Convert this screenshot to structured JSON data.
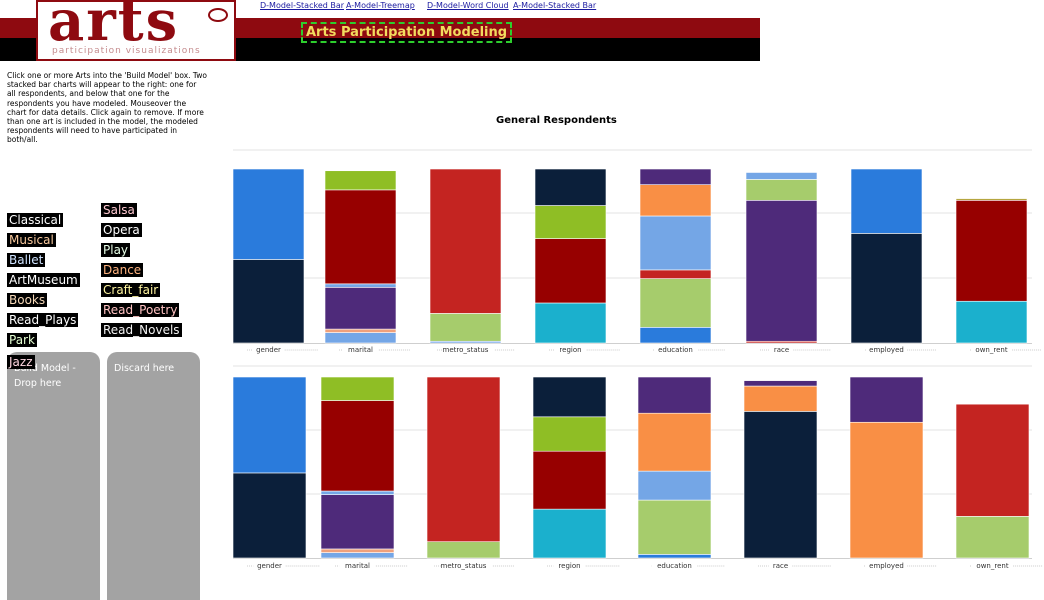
{
  "header": {
    "logo_text": "arts",
    "logo_subtitle": "participation visualizations",
    "nav_links": [
      "D-Model-Stacked Bar",
      "A-Model-Treemap",
      "D-Model-Word Cloud",
      "A-Model-Stacked Bar"
    ],
    "title": "Arts Participation Modeling"
  },
  "instructions": "Click one or more Arts into the 'Build Model' box. Two stacked bar charts will appear to the right: one for all respondents, and below that one for the respondents you have modeled. Mouseover the chart for data details. Click again to remove. If more than one art is included in the model, the modeled respondents will need to have participated in both/all.",
  "arts": {
    "col1": [
      {
        "label": "Classical",
        "color": "#ffffff"
      },
      {
        "label": "Musical",
        "color": "#f6c79c"
      },
      {
        "label": "Ballet",
        "color": "#cfe3ff"
      },
      {
        "label": "ArtMuseum",
        "color": "#ffffff"
      },
      {
        "label": "Books",
        "color": "#f6d9b8"
      },
      {
        "label": "Read_Plays",
        "color": "#ffffff"
      },
      {
        "label": "Park",
        "color": "#e5ffd2"
      },
      {
        "label": "Jazz",
        "color": "#ffd6e0"
      }
    ],
    "col2": [
      {
        "label": "Salsa",
        "color": "#ffc9d1"
      },
      {
        "label": "Opera",
        "color": "#ffffff"
      },
      {
        "label": "Play",
        "color": "#e8ffe8"
      },
      {
        "label": "Dance",
        "color": "#ffb37f"
      },
      {
        "label": "Craft_fair",
        "color": "#fff5a0"
      },
      {
        "label": "Read_Poetry",
        "color": "#ffc2c2"
      },
      {
        "label": "Read_Novels",
        "color": "#f2f2f2"
      }
    ]
  },
  "dropzones": {
    "build_label": "Build Model - Drop here",
    "discard_label": "Discard here"
  },
  "colors": {
    "navy": "#0b1f3a",
    "blue": "#2a7bdc",
    "lightblue": "#74a6e6",
    "green": "#8fbe25",
    "lightgreen": "#a6cc6c",
    "darkred": "#970000",
    "red": "#c42421",
    "purple": "#4e2a7a",
    "orange": "#f98f45",
    "teal": "#1bb0cd",
    "salmon": "#f0a07a",
    "olive": "#b5a640",
    "accent_red": "#8e0a10",
    "title_yellow": "#f2dc5f"
  },
  "chart_data": [
    {
      "type": "stacked-bar",
      "title": "General Respondents",
      "categories": [
        "gender",
        "marital",
        "metro_status",
        "region",
        "education",
        "race",
        "employed",
        "own_rent"
      ],
      "ylim": [
        0,
        100
      ],
      "segments": [
        [
          {
            "v": 48,
            "c": "navy"
          },
          {
            "v": 52,
            "c": "blue"
          }
        ],
        [
          {
            "v": 6,
            "c": "lightblue"
          },
          {
            "v": 2,
            "c": "salmon"
          },
          {
            "v": 24,
            "c": "purple"
          },
          {
            "v": 2,
            "c": "lightblue"
          },
          {
            "v": 54,
            "c": "darkred"
          },
          {
            "v": 11,
            "c": "green"
          }
        ],
        [
          {
            "v": 1,
            "c": "lightblue"
          },
          {
            "v": 16,
            "c": "lightgreen"
          },
          {
            "v": 83,
            "c": "red"
          }
        ],
        [
          {
            "v": 23,
            "c": "teal"
          },
          {
            "v": 37,
            "c": "darkred"
          },
          {
            "v": 19,
            "c": "green"
          },
          {
            "v": 21,
            "c": "navy"
          }
        ],
        [
          {
            "v": 9,
            "c": "blue"
          },
          {
            "v": 28,
            "c": "lightgreen"
          },
          {
            "v": 5,
            "c": "red"
          },
          {
            "v": 31,
            "c": "lightblue"
          },
          {
            "v": 18,
            "c": "orange"
          },
          {
            "v": 9,
            "c": "purple"
          }
        ],
        [
          {
            "v": 1,
            "c": "red"
          },
          {
            "v": 81,
            "c": "purple"
          },
          {
            "v": 12,
            "c": "lightgreen"
          },
          {
            "v": 4,
            "c": "lightblue"
          }
        ],
        [
          {
            "v": 63,
            "c": "navy"
          },
          {
            "v": 37,
            "c": "blue"
          }
        ],
        [
          {
            "v": 24,
            "c": "teal"
          },
          {
            "v": 58,
            "c": "darkred"
          },
          {
            "v": 1,
            "c": "olive"
          }
        ]
      ]
    },
    {
      "type": "stacked-bar",
      "title": "",
      "categories": [
        "gender",
        "marital",
        "metro_status",
        "region",
        "education",
        "race",
        "employed",
        "own_rent"
      ],
      "ylim": [
        0,
        100
      ],
      "segments": [
        [
          {
            "v": 47,
            "c": "navy"
          },
          {
            "v": 53,
            "c": "blue"
          }
        ],
        [
          {
            "v": 3,
            "c": "lightblue"
          },
          {
            "v": 2,
            "c": "salmon"
          },
          {
            "v": 30,
            "c": "purple"
          },
          {
            "v": 2,
            "c": "lightblue"
          },
          {
            "v": 50,
            "c": "darkred"
          },
          {
            "v": 13,
            "c": "green"
          }
        ],
        [
          {
            "v": 9,
            "c": "lightgreen"
          },
          {
            "v": 91,
            "c": "red"
          }
        ],
        [
          {
            "v": 27,
            "c": "teal"
          },
          {
            "v": 32,
            "c": "darkred"
          },
          {
            "v": 19,
            "c": "green"
          },
          {
            "v": 22,
            "c": "navy"
          }
        ],
        [
          {
            "v": 2,
            "c": "blue"
          },
          {
            "v": 30,
            "c": "lightgreen"
          },
          {
            "v": 16,
            "c": "lightblue"
          },
          {
            "v": 32,
            "c": "orange"
          },
          {
            "v": 20,
            "c": "purple"
          }
        ],
        [
          {
            "v": 81,
            "c": "navy"
          },
          {
            "v": 14,
            "c": "orange"
          },
          {
            "v": 3,
            "c": "purple"
          }
        ],
        [
          {
            "v": 75,
            "c": "orange"
          },
          {
            "v": 25,
            "c": "purple"
          }
        ],
        [
          {
            "v": 23,
            "c": "lightgreen"
          },
          {
            "v": 62,
            "c": "red"
          }
        ]
      ]
    }
  ]
}
